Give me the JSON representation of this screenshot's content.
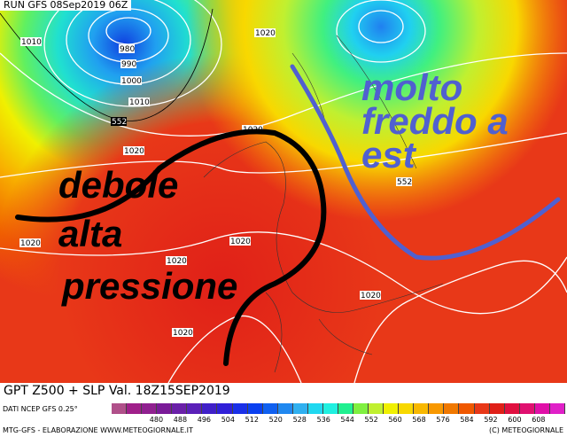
{
  "header": {
    "run": "RUN GFS 08Sep2019 06Z"
  },
  "map": {
    "isobar_labels": [
      "1010",
      "980",
      "990",
      "1000",
      "1010",
      "552",
      "1020",
      "1020",
      "1020",
      "1020",
      "1020",
      "1020",
      "1020",
      "552",
      "1020"
    ],
    "annotation_west": [
      "debole",
      "alta",
      "pressione"
    ],
    "annotation_east": [
      "molto",
      "freddo a",
      "est"
    ],
    "annotation_west_color": "#000000",
    "annotation_east_color": "#5060d0"
  },
  "footer": {
    "title": "GPT Z500 + SLP Val. 18Z15SEP2019",
    "source": "DATI NCEP GFS 0.25°",
    "credit": "MTG-GFS - ELABORAZIONE WWW.METEOGIORNALE.IT",
    "copyright": "(C) METEOGIORNALE"
  },
  "legend": {
    "ticks": [
      "480",
      "488",
      "496",
      "504",
      "512",
      "520",
      "528",
      "536",
      "544",
      "552",
      "560",
      "568",
      "576",
      "584",
      "592",
      "600",
      "608"
    ],
    "colors": [
      "#b0508a",
      "#a0208a",
      "#902090",
      "#7a1a98",
      "#6a20a8",
      "#5a20b8",
      "#4020c8",
      "#3020d8",
      "#1a30e8",
      "#0a40f0",
      "#1060f0",
      "#2088f0",
      "#30b0f0",
      "#20d8f0",
      "#20f0e0",
      "#20f090",
      "#80f040",
      "#c0f030",
      "#f0f000",
      "#f8d800",
      "#f8b800",
      "#f89800",
      "#f07800",
      "#f05800",
      "#e83818",
      "#e02018",
      "#e01040",
      "#e01070",
      "#e010a8",
      "#e020c8"
    ]
  }
}
